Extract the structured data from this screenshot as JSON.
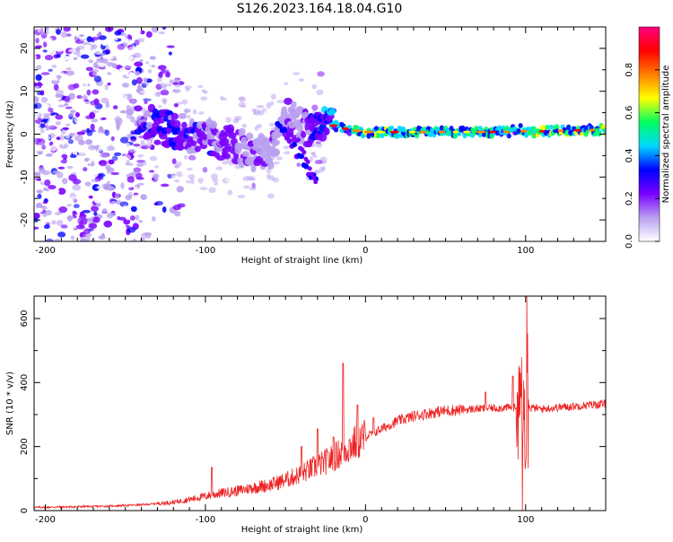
{
  "title": "S126.2023.164.18.04.G10",
  "chart_data": [
    {
      "type": "heatmap",
      "name": "spectrogram",
      "xlabel": "Height of straight line (km)",
      "ylabel": "Frequency (Hz)",
      "xlim": [
        -207,
        150
      ],
      "ylim": [
        -25,
        25
      ],
      "x_ticks": [
        -200,
        -100,
        0,
        100
      ],
      "y_ticks": [
        -20,
        -10,
        0,
        10,
        20
      ],
      "colorbar": {
        "label": "Normalized spectral amplitude",
        "range": [
          0,
          1
        ],
        "ticks": [
          0.0,
          0.2,
          0.4,
          0.6,
          0.8
        ],
        "colors": [
          "#ffffff",
          "#b9a0f0",
          "#7a00ff",
          "#0000ff",
          "#00d8ff",
          "#00ff60",
          "#ffff00",
          "#ff7f00",
          "#ff0000",
          "#ff007f"
        ]
      },
      "ridge": {
        "x": [
          -140,
          -130,
          -120,
          -110,
          -100,
          -90,
          -80,
          -70,
          -60,
          -50,
          -45,
          -40,
          -35,
          -30,
          -25,
          -20,
          -10,
          0,
          20,
          40,
          60,
          80,
          90,
          95,
          100,
          120,
          150
        ],
        "y": [
          4,
          2,
          1,
          0,
          -1,
          -2,
          -3,
          -4,
          -5,
          4,
          3,
          2,
          1,
          2,
          3,
          2,
          1,
          0.5,
          0.5,
          0.5,
          0.5,
          0.5,
          0.5,
          1.5,
          0.5,
          0.8,
          1.0
        ],
        "amplitude": [
          0.3,
          0.35,
          0.35,
          0.3,
          0.3,
          0.28,
          0.25,
          0.22,
          0.2,
          0.22,
          0.2,
          0.2,
          0.3,
          0.35,
          0.4,
          0.45,
          0.5,
          0.6,
          0.55,
          0.55,
          0.55,
          0.55,
          0.5,
          0.45,
          0.7,
          0.6,
          0.65
        ]
      }
    },
    {
      "type": "line",
      "name": "snr",
      "xlabel": "Height of straight line (km)",
      "ylabel": "SNR (10 * v/v)",
      "xlim": [
        -207,
        150
      ],
      "ylim": [
        0,
        670
      ],
      "x_ticks": [
        -200,
        -100,
        0,
        100
      ],
      "y_ticks": [
        0,
        200,
        400,
        600
      ],
      "color": "#ee2222",
      "trend": {
        "x": [
          -207,
          -180,
          -160,
          -140,
          -130,
          -120,
          -110,
          -100,
          -90,
          -80,
          -70,
          -60,
          -50,
          -40,
          -30,
          -20,
          -10,
          0,
          10,
          20,
          30,
          40,
          50,
          60,
          70,
          80,
          90,
          100,
          110,
          120,
          130,
          140,
          150
        ],
        "y": [
          10,
          12,
          14,
          18,
          22,
          26,
          35,
          45,
          55,
          62,
          72,
          80,
          95,
          115,
          140,
          165,
          200,
          230,
          255,
          280,
          295,
          305,
          312,
          315,
          318,
          320,
          322,
          322,
          318,
          322,
          326,
          330,
          333
        ]
      },
      "spikes": [
        {
          "x": -96,
          "y": 135
        },
        {
          "x": -40,
          "y": 200
        },
        {
          "x": -30,
          "y": 255
        },
        {
          "x": -20,
          "y": 230
        },
        {
          "x": -14,
          "y": 460
        },
        {
          "x": -5,
          "y": 330
        },
        {
          "x": 5,
          "y": 290
        },
        {
          "x": 75,
          "y": 370
        },
        {
          "x": 92,
          "y": 420
        },
        {
          "x": 98,
          "y": 665
        },
        {
          "x": 101,
          "y": 600
        },
        {
          "x": 98,
          "y": 50
        }
      ]
    }
  ]
}
